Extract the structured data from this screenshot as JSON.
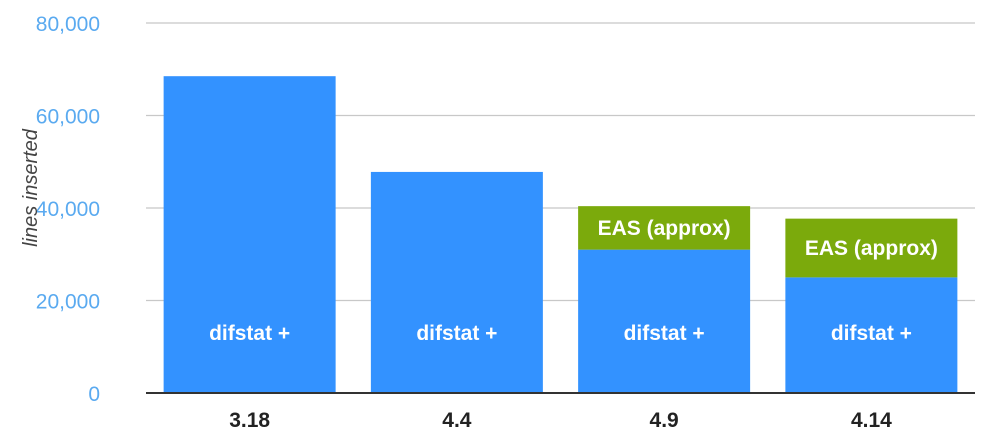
{
  "chart_data": {
    "type": "bar",
    "stacked": true,
    "title": "",
    "xlabel": "",
    "ylabel": "lines inserted",
    "ylim": [
      0,
      80000
    ],
    "yticks": [
      0,
      20000,
      40000,
      60000,
      80000
    ],
    "ytick_labels": [
      "0",
      "20,000",
      "40,000",
      "60,000",
      "80,000"
    ],
    "grid": true,
    "legend": "none",
    "categories": [
      "3.18",
      "4.4",
      "4.9",
      "4.14"
    ],
    "series": [
      {
        "values": [
          68500,
          47800,
          31000,
          25000
        ],
        "color": "#3392ff",
        "labels": [
          "difstat +",
          "difstat +",
          "difstat +",
          "difstat +"
        ]
      },
      {
        "values": [
          0,
          0,
          9400,
          12700
        ],
        "color": "#7baa0c",
        "labels": [
          "",
          "",
          "EAS (approx)",
          "EAS (approx)"
        ]
      }
    ],
    "colors": {
      "tick_text": "#5aaaf0",
      "gridline": "#c8c8c8",
      "baseline": "#333333"
    }
  }
}
